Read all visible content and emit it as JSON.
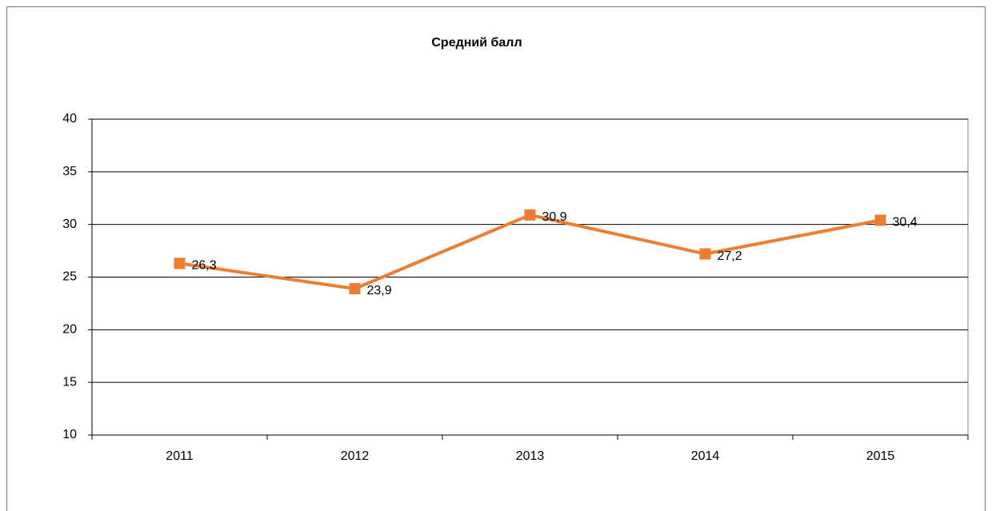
{
  "chart_data": {
    "type": "line",
    "title": "Средний балл",
    "categories": [
      "2011",
      "2012",
      "2013",
      "2014",
      "2015"
    ],
    "series": [
      {
        "name": null,
        "color": "#ed7d31",
        "values": [
          26.3,
          23.9,
          30.9,
          27.2,
          30.4
        ],
        "value_labels": [
          "26,3",
          "23,9",
          "30,9",
          "27,2",
          "30,4"
        ]
      }
    ],
    "ylim": [
      10,
      40
    ],
    "yticks": [
      10,
      15,
      20,
      25,
      30,
      35,
      40
    ],
    "grid": true
  }
}
